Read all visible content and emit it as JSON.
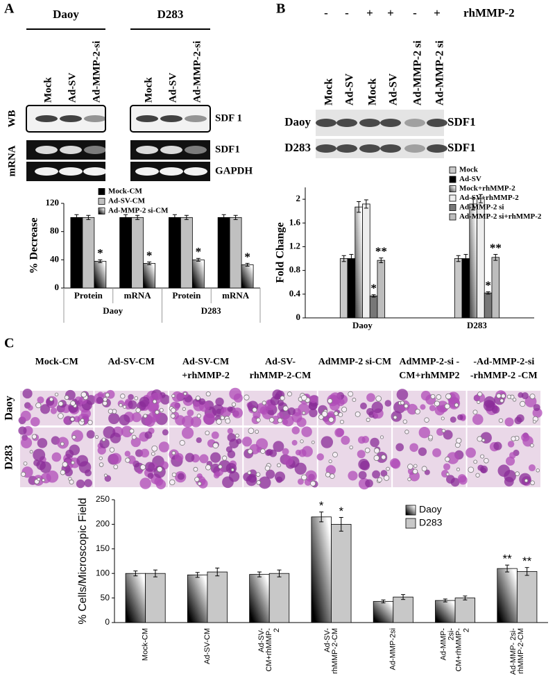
{
  "panel_a": {
    "label": "A",
    "cell_lines": [
      "Daoy",
      "D283"
    ],
    "lanes": [
      "Mock",
      "Ad-SV",
      "Ad-MMP-2-si"
    ],
    "rows": [
      "WB",
      "mRNA"
    ],
    "bands": [
      "SDF 1",
      "SDF1",
      "GAPDH"
    ]
  },
  "panel_b": {
    "label": "B",
    "treatment": "rhMMP-2",
    "signs": [
      "-",
      "-",
      "+",
      "+",
      "-",
      "+"
    ],
    "lanes": [
      "Mock",
      "Ad-SV",
      "Mock",
      "Ad-SV",
      "Ad-MMP-2 si",
      "Ad-MMP-2 si"
    ],
    "rows": [
      "Daoy",
      "D283"
    ],
    "band": "SDF1"
  },
  "panel_c": {
    "label": "C",
    "columns": [
      [
        "Mock-CM"
      ],
      [
        "Ad-SV-CM"
      ],
      [
        "Ad-SV-CM",
        "+rhMMP-2"
      ],
      [
        "Ad-SV-",
        "rhMMP-2-CM"
      ],
      [
        "AdMMP-2 si-CM"
      ],
      [
        "AdMMP-2-si -",
        "CM+rhMMP2"
      ],
      [
        "-Ad-MMP-2-si",
        "-rhMMP-2 -CM"
      ]
    ],
    "rows": [
      "Daoy",
      "D283"
    ]
  },
  "chart_data": [
    {
      "type": "bar",
      "ylabel": "% Decrease",
      "categories": [
        "Protein",
        "mRNA",
        "Protein",
        "mRNA"
      ],
      "groups": [
        "Daoy",
        "D283"
      ],
      "ylim": [
        0,
        120
      ],
      "yticks": [
        0,
        40,
        80,
        120
      ],
      "series": [
        {
          "name": "Mock-CM",
          "color": "#000000",
          "values": [
            100,
            100,
            100,
            100
          ],
          "errors": [
            4,
            4,
            4,
            4
          ]
        },
        {
          "name": "Ad-SV-CM",
          "color": "#c0c0c0",
          "values": [
            100,
            100,
            100,
            100
          ],
          "errors": [
            3,
            3,
            3,
            3
          ]
        },
        {
          "name": "Ad-MMP-2 si-CM",
          "color": "#000000",
          "fill": "gradient",
          "values": [
            38,
            35,
            40,
            33
          ],
          "errors": [
            2,
            2,
            2,
            2
          ],
          "annotations": [
            "*",
            "*",
            "*",
            "*"
          ]
        }
      ]
    },
    {
      "type": "bar",
      "ylabel": "Fold Change",
      "categories": [
        "Daoy",
        "D283"
      ],
      "ylim": [
        0,
        2.2
      ],
      "yticks": [
        0,
        0.4,
        0.8,
        1.2,
        1.6,
        2
      ],
      "series": [
        {
          "name": "Mock",
          "color": "#c8c8c8",
          "values": [
            1,
            1
          ],
          "errors": [
            0.05,
            0.05
          ]
        },
        {
          "name": "Ad-SV",
          "color": "#000000",
          "values": [
            1,
            1
          ],
          "errors": [
            0.07,
            0.07
          ]
        },
        {
          "name": "Mock+rhMMP-2",
          "color": "#555555",
          "fill": "gradient",
          "values": [
            1.87,
            1.92
          ],
          "errors": [
            0.09,
            0.1
          ]
        },
        {
          "name": "Ad-SV+rhMMP-2",
          "color": "#eeeeee",
          "values": [
            1.92,
            2.01
          ],
          "errors": [
            0.07,
            0.07
          ]
        },
        {
          "name": "Ad-MMP-2 si",
          "color": "#777777",
          "values": [
            0.37,
            0.42
          ],
          "errors": [
            0.02,
            0.02
          ],
          "annotations": [
            "*",
            "*"
          ]
        },
        {
          "name": "Ad-MMP-2 si+rhMMP-2",
          "color": "#bdbdbd",
          "values": [
            0.97,
            1.02
          ],
          "errors": [
            0.04,
            0.05
          ],
          "annotations": [
            "**",
            "**"
          ]
        }
      ]
    },
    {
      "type": "bar",
      "ylabel": "% Cells/Microscopic Field",
      "categories": [
        [
          "Mock-CM"
        ],
        [
          "Ad-SV-CM"
        ],
        [
          "Ad-SV-",
          "CM+rhMMP-",
          "2"
        ],
        [
          "Ad-SV-",
          "rhMMP-2-CM"
        ],
        [
          "Ad-MMP-2si"
        ],
        [
          "Ad-MMP-",
          "2si-",
          "CM+rhMMP-",
          "2"
        ],
        [
          "Ad-MMP- 2si-",
          "rhMMP-2-CM"
        ]
      ],
      "ylim": [
        0,
        250
      ],
      "yticks": [
        0,
        50,
        100,
        150,
        200,
        250
      ],
      "series": [
        {
          "name": "Daoy",
          "color": "#000000",
          "fill": "gradient",
          "values": [
            100,
            97,
            98,
            215,
            43,
            45,
            110
          ],
          "errors": [
            5,
            5,
            5,
            10,
            3,
            3,
            7
          ],
          "annotations": [
            null,
            null,
            null,
            "*",
            null,
            null,
            "**"
          ]
        },
        {
          "name": "D283",
          "color": "#c8c8c8",
          "values": [
            100,
            103,
            100,
            200,
            52,
            50,
            104
          ],
          "errors": [
            7,
            8,
            7,
            14,
            5,
            4,
            8
          ],
          "annotations": [
            null,
            null,
            null,
            "*",
            null,
            null,
            "**"
          ]
        }
      ]
    }
  ]
}
